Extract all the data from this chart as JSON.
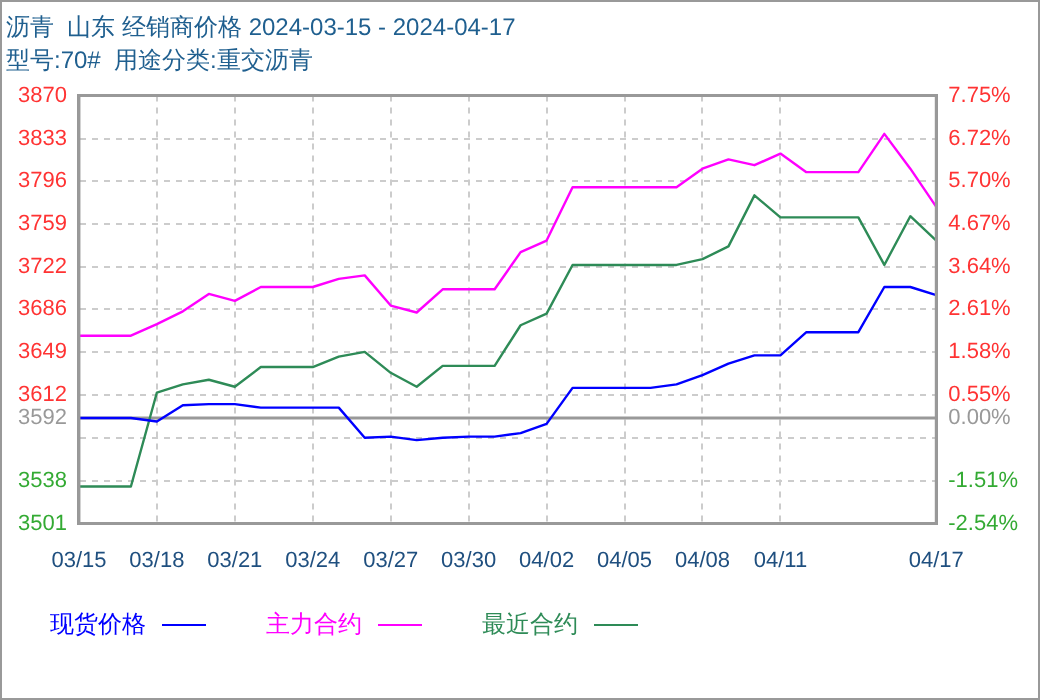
{
  "chart_data": {
    "type": "line",
    "title": "沥青  山东 经销商价格 2024-03-15 - 2024-04-17",
    "subtitle": "型号:70#  用途分类:重交沥青",
    "categories": [
      "03/15",
      null,
      null,
      "03/18",
      null,
      null,
      "03/21",
      null,
      null,
      "03/24",
      null,
      null,
      "03/27",
      null,
      null,
      "03/30",
      null,
      null,
      "04/02",
      null,
      null,
      "04/05",
      null,
      null,
      "04/08",
      null,
      null,
      "04/11",
      null,
      null,
      null,
      null,
      null,
      "04/17"
    ],
    "series": [
      {
        "name": "现货价格",
        "color": "#0000ff",
        "values": [
          3592,
          3592,
          3592,
          3589,
          3603,
          3604,
          3604,
          3601,
          3601,
          3601,
          3601,
          3575,
          3576,
          3573,
          3575,
          3576,
          3576,
          3579,
          3587,
          3618,
          3618,
          3618,
          3618,
          3621,
          3629,
          3639,
          3646,
          3646,
          3666,
          3666,
          3666,
          3705,
          3705,
          3698
        ]
      },
      {
        "name": "主力合约",
        "color": "#ff00ff",
        "values": [
          3663,
          3663,
          3663,
          3673,
          3684,
          3699,
          3693,
          3705,
          3705,
          3705,
          3712,
          3715,
          3689,
          3683,
          3703,
          3703,
          3703,
          3735,
          3745,
          3791,
          3791,
          3791,
          3791,
          3791,
          3807,
          3815,
          3810,
          3820,
          3804,
          3804,
          3804,
          3837,
          3807,
          3774
        ]
      },
      {
        "name": "最近合约",
        "color": "#2e8b57",
        "values": [
          3533,
          3533,
          3533,
          3614,
          3621,
          3625,
          3619,
          3636,
          3636,
          3636,
          3645,
          3649,
          3631,
          3619,
          3637,
          3637,
          3637,
          3672,
          3682,
          3724,
          3724,
          3724,
          3724,
          3724,
          3729,
          3740,
          3784,
          3765,
          3765,
          3765,
          3765,
          3724,
          3766,
          3745
        ]
      }
    ],
    "ylim": [
      3501,
      3870
    ],
    "yticks": [
      3501,
      3538,
      {
        "value": 3575,
        "label": null
      },
      3592,
      3612,
      3649,
      3686,
      3722,
      3759,
      3796,
      3833,
      3870
    ],
    "y2lim": [
      -2.54,
      7.75
    ],
    "y2ticks": [
      {
        "value": -2.54,
        "label": "-2.54%"
      },
      {
        "value": -1.51,
        "label": "-1.51%"
      },
      {
        "value": 0,
        "label": "0.00%"
      },
      {
        "value": 0.55,
        "label": "0.55%"
      },
      {
        "value": 1.58,
        "label": "1.58%"
      },
      {
        "value": 2.61,
        "label": "2.61%"
      },
      {
        "value": 3.64,
        "label": "3.64%"
      },
      {
        "value": 4.67,
        "label": "4.67%"
      },
      {
        "value": 5.7,
        "label": "5.70%"
      },
      {
        "value": 6.72,
        "label": "6.72%"
      },
      {
        "value": 7.75,
        "label": "7.75%"
      }
    ],
    "ref_lines": [
      {
        "axis": "y",
        "value": 3592,
        "color": "#999999"
      }
    ],
    "grid": true,
    "legend": "bottom",
    "marker": "none",
    "line_style": "solid"
  }
}
